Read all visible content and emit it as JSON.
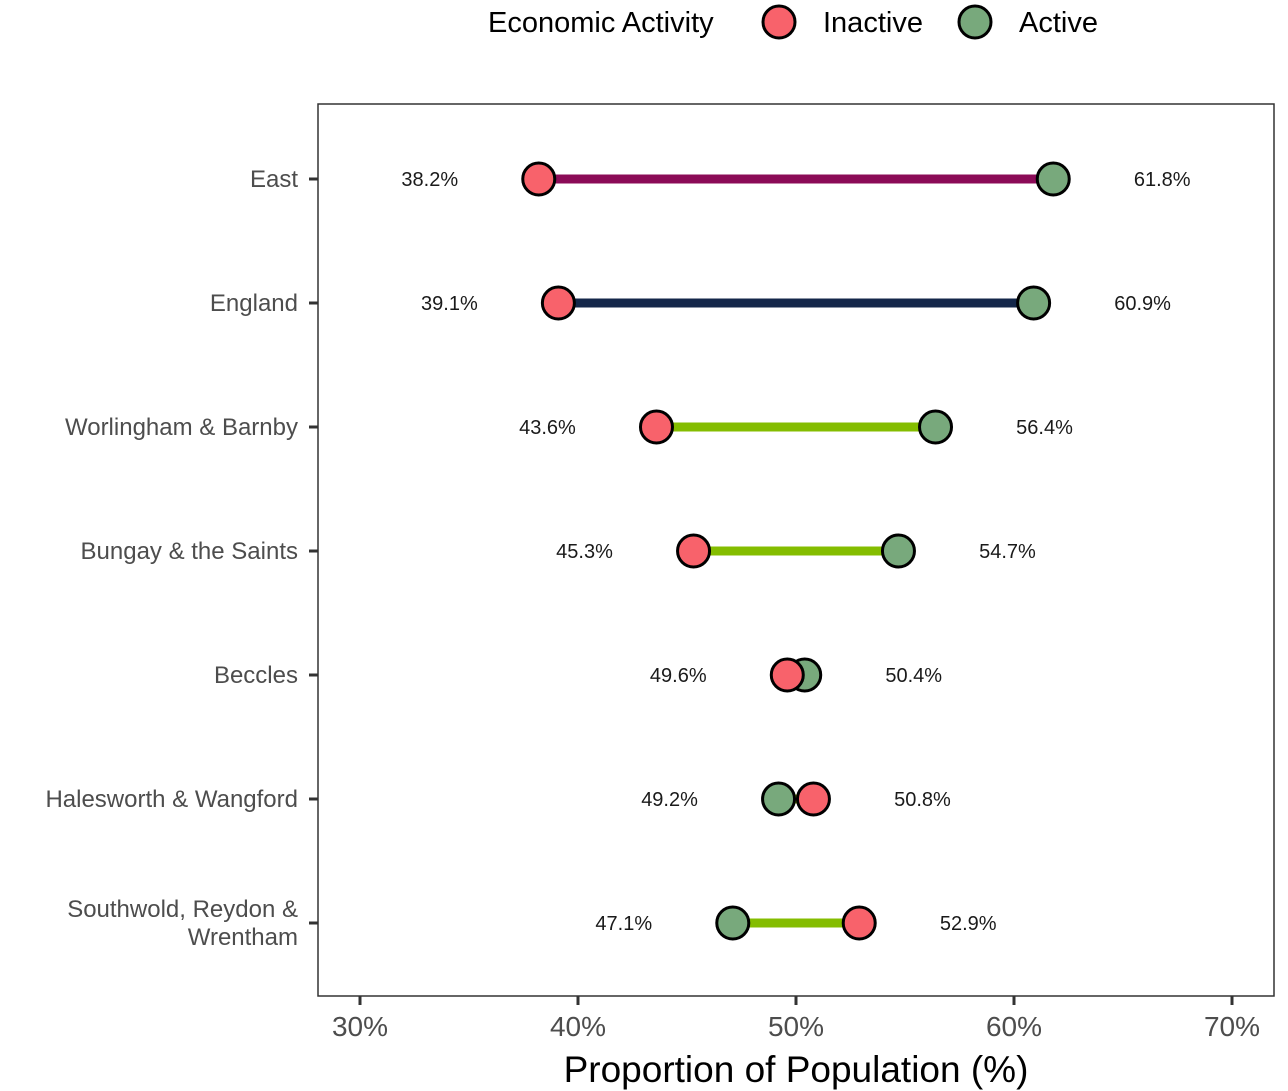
{
  "chart_data": {
    "type": "dumbbell",
    "legend": {
      "title": "Economic Activity",
      "position": "top",
      "items": [
        {
          "name": "Inactive",
          "color": "#f8626b"
        },
        {
          "name": "Active",
          "color": "#78a97c"
        }
      ]
    },
    "xlabel": "Proportion of Population (%)",
    "ylabel": "",
    "xlim": [
      28.1,
      71.9
    ],
    "x_ticks": [
      30,
      40,
      50,
      60,
      70
    ],
    "x_tick_labels": [
      "30%",
      "40%",
      "50%",
      "60%",
      "70%"
    ],
    "grid": false,
    "categories": [
      {
        "name": "East",
        "lines": [
          "East"
        ],
        "inactive": 38.2,
        "active": 61.8,
        "inactive_label": "38.2%",
        "active_label": "61.8%",
        "segment_color": "#8b0b57"
      },
      {
        "name": "England",
        "lines": [
          "England"
        ],
        "inactive": 39.1,
        "active": 60.9,
        "inactive_label": "39.1%",
        "active_label": "60.9%",
        "segment_color": "#14274a"
      },
      {
        "name": "Worlingham & Barnby",
        "lines": [
          "Worlingham & Barnby"
        ],
        "inactive": 43.6,
        "active": 56.4,
        "inactive_label": "43.6%",
        "active_label": "56.4%",
        "segment_color": "#84bd00"
      },
      {
        "name": "Bungay & the Saints",
        "lines": [
          "Bungay & the Saints"
        ],
        "inactive": 45.3,
        "active": 54.7,
        "inactive_label": "45.3%",
        "active_label": "54.7%",
        "segment_color": "#84bd00"
      },
      {
        "name": "Beccles",
        "lines": [
          "Beccles"
        ],
        "inactive": 49.6,
        "active": 50.4,
        "inactive_label": "49.6%",
        "active_label": "50.4%",
        "segment_color": "#84bd00"
      },
      {
        "name": "Halesworth & Wangford",
        "lines": [
          "Halesworth & Wangford"
        ],
        "inactive": 50.8,
        "active": 49.2,
        "inactive_label": "50.8%",
        "active_label": "49.2%",
        "segment_color": "#84bd00"
      },
      {
        "name": "Southwold, Reydon & Wrentham",
        "lines": [
          "Southwold, Reydon &",
          "Wrentham"
        ],
        "inactive": 52.9,
        "active": 47.1,
        "inactive_label": "52.9%",
        "active_label": "47.1%",
        "segment_color": "#84bd00"
      }
    ]
  }
}
